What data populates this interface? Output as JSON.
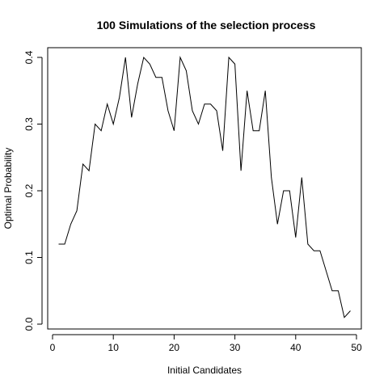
{
  "chart_data": {
    "type": "line",
    "title": "100 Simulations of the selection process",
    "xlabel": "Initial Candidates",
    "ylabel": "Optimal Probability",
    "xlim": [
      0,
      50
    ],
    "ylim": [
      0,
      0.4
    ],
    "grid": false,
    "xticks": [
      0,
      10,
      20,
      30,
      40,
      50
    ],
    "yticks": [
      0.0,
      0.1,
      0.2,
      0.3,
      0.4
    ],
    "xtick_labels": [
      "0",
      "10",
      "20",
      "30",
      "40",
      "50"
    ],
    "ytick_labels": [
      "0.0",
      "0.1",
      "0.2",
      "0.3",
      "0.4"
    ],
    "series": [
      {
        "color": "#000000",
        "x": [
          1,
          2,
          3,
          4,
          5,
          6,
          7,
          8,
          9,
          10,
          11,
          12,
          13,
          14,
          15,
          16,
          17,
          18,
          19,
          20,
          21,
          22,
          23,
          24,
          25,
          26,
          27,
          28,
          29,
          30,
          31,
          32,
          33,
          34,
          35,
          36,
          37,
          38,
          39,
          40,
          41,
          42,
          43,
          44,
          45,
          46,
          47,
          48,
          49
        ],
        "y": [
          0.12,
          0.12,
          0.15,
          0.17,
          0.24,
          0.23,
          0.3,
          0.29,
          0.33,
          0.3,
          0.34,
          0.4,
          0.31,
          0.36,
          0.4,
          0.39,
          0.37,
          0.37,
          0.32,
          0.29,
          0.4,
          0.38,
          0.32,
          0.3,
          0.33,
          0.33,
          0.32,
          0.26,
          0.4,
          0.39,
          0.23,
          0.35,
          0.29,
          0.29,
          0.35,
          0.22,
          0.15,
          0.2,
          0.2,
          0.13,
          0.22,
          0.12,
          0.11,
          0.11,
          0.08,
          0.05,
          0.05,
          0.01,
          0.02
        ]
      }
    ]
  }
}
